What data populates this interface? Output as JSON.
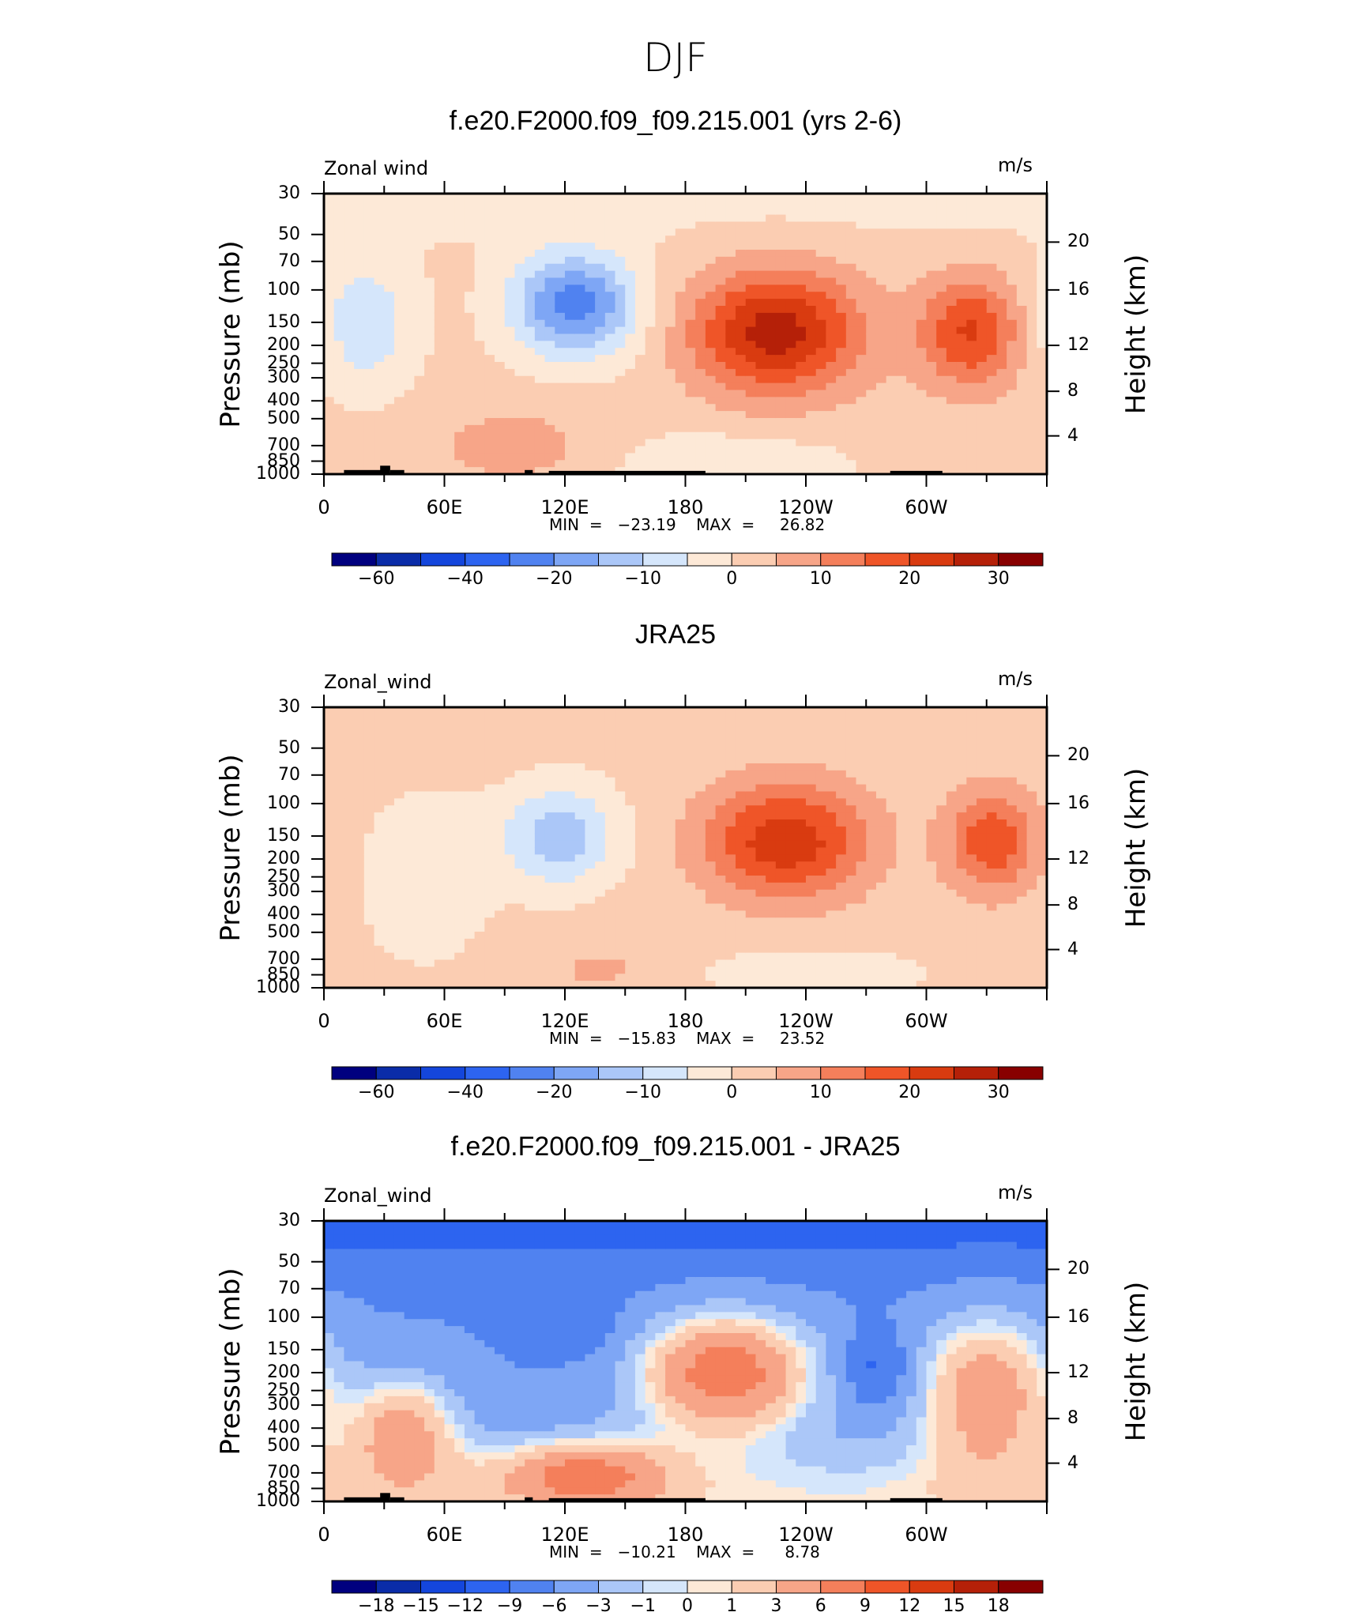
{
  "figure": {
    "title": "DJF"
  },
  "colors": {
    "palette": [
      "#00007f",
      "#0a2ca8",
      "#1446dc",
      "#2d64f0",
      "#5082f0",
      "#7ea6f5",
      "#abc7f8",
      "#d5e6fb",
      "#fde9d7",
      "#fbcdb2",
      "#f7a588",
      "#f47f5b",
      "#ef5528",
      "#d93b10",
      "#b52008",
      "#880000"
    ]
  },
  "chart_data": [
    {
      "type": "heatmap",
      "title": "f.e20.F2000.f09_f09.215.001 (yrs 2-6)",
      "variable": "Zonal wind",
      "units": "m/s",
      "ylabel": "Pressure (mb)",
      "ylabel2": "Height (km)",
      "y_ticks": [
        "30",
        "50",
        "70",
        "100",
        "150",
        "200",
        "250",
        "300",
        "400",
        "500",
        "700",
        "850",
        "1000"
      ],
      "height_ticks": [
        "20",
        "16",
        "12",
        "8",
        "4"
      ],
      "x_ticks": [
        "0",
        "60E",
        "120E",
        "180",
        "120W",
        "60W"
      ],
      "min_label": "MIN  =   −23.19    MAX  =     26.82",
      "min": -23.19,
      "max": 26.82,
      "colorbar_labels": [
        "−60",
        "−40",
        "−20",
        "−10",
        "0",
        "10",
        "20",
        "30"
      ],
      "features": [
        {
          "kind": "max",
          "lon": 225,
          "p": 170,
          "value": 26.82
        },
        {
          "kind": "max",
          "lon": 322,
          "p": 170,
          "value": 18
        },
        {
          "kind": "min",
          "lon": 125,
          "p": 120,
          "value": -23.19
        }
      ]
    },
    {
      "type": "heatmap",
      "title": "JRA25",
      "variable": "Zonal_wind",
      "units": "m/s",
      "ylabel": "Pressure (mb)",
      "ylabel2": "Height (km)",
      "y_ticks": [
        "30",
        "50",
        "70",
        "100",
        "150",
        "200",
        "250",
        "300",
        "400",
        "500",
        "700",
        "850",
        "1000"
      ],
      "height_ticks": [
        "20",
        "16",
        "12",
        "8",
        "4"
      ],
      "x_ticks": [
        "0",
        "60E",
        "120E",
        "180",
        "120W",
        "60W"
      ],
      "min_label": "MIN  =   −15.83    MAX  =     23.52",
      "min": -15.83,
      "max": 23.52,
      "colorbar_labels": [
        "−60",
        "−40",
        "−20",
        "−10",
        "0",
        "10",
        "20",
        "30"
      ],
      "features": [
        {
          "kind": "max",
          "lon": 230,
          "p": 160,
          "value": 23.52
        },
        {
          "kind": "max",
          "lon": 333,
          "p": 160,
          "value": 17
        },
        {
          "kind": "min",
          "lon": 118,
          "p": 150,
          "value": -15.83
        }
      ]
    },
    {
      "type": "heatmap",
      "title": "f.e20.F2000.f09_f09.215.001 - JRA25",
      "variable": "Zonal_wind",
      "units": "m/s",
      "ylabel": "Pressure (mb)",
      "ylabel2": "Height (km)",
      "y_ticks": [
        "30",
        "50",
        "70",
        "100",
        "150",
        "200",
        "250",
        "300",
        "400",
        "500",
        "700",
        "850",
        "1000"
      ],
      "height_ticks": [
        "20",
        "16",
        "12",
        "8",
        "4"
      ],
      "x_ticks": [
        "0",
        "60E",
        "120E",
        "180",
        "120W",
        "60W"
      ],
      "min_label": "MIN  =   −10.21    MAX  =      8.78",
      "min": -10.21,
      "max": 8.78,
      "colorbar_labels": [
        "−18",
        "−15",
        "−12",
        "−9",
        "−6",
        "−3",
        "−1",
        "0",
        "1",
        "3",
        "6",
        "9",
        "12",
        "15",
        "18"
      ],
      "features": [
        {
          "kind": "max",
          "lon": 200,
          "p": 200,
          "value": 8.78
        },
        {
          "kind": "min",
          "lon": 275,
          "p": 190,
          "value": -10.21
        }
      ]
    }
  ]
}
